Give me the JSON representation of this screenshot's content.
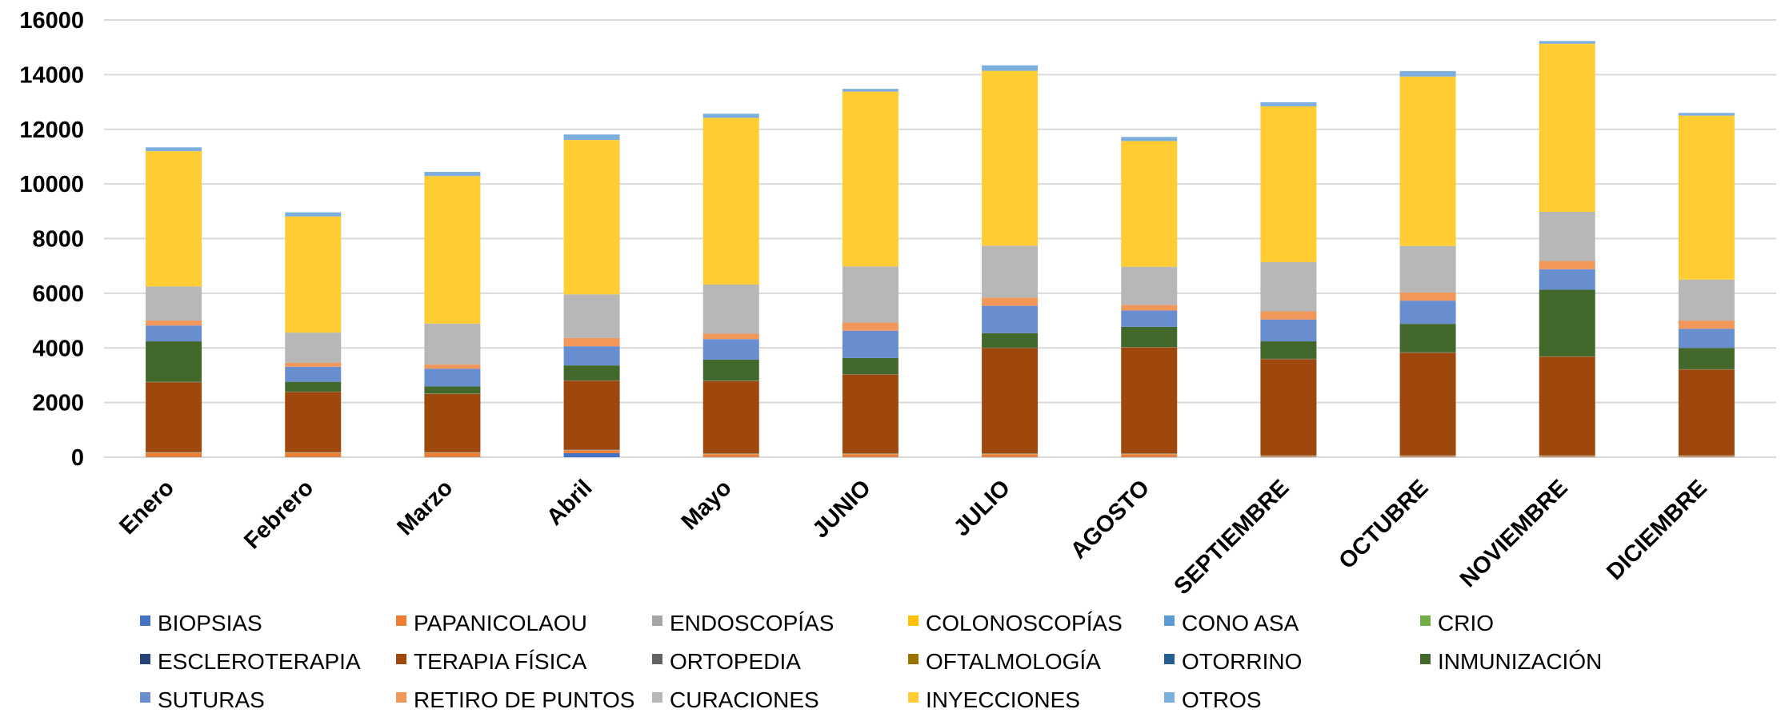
{
  "chart_data": {
    "type": "bar",
    "stacked": true,
    "title": "",
    "xlabel": "",
    "ylabel": "",
    "ylim": [
      0,
      16000
    ],
    "yticks": [
      "0",
      "2000",
      "4000",
      "6000",
      "8000",
      "10000",
      "12000",
      "14000",
      "16000"
    ],
    "grid": "horizontal",
    "legend_position": "bottom",
    "categories": [
      "Enero",
      "Febrero",
      "Marzo",
      "Abril",
      "Mayo",
      "JUNIO",
      "JULIO",
      "AGOSTO",
      "SEPTIEMBRE",
      "OCTUBRE",
      "NOVIEMBRE",
      "DICIEMBRE"
    ],
    "series": [
      {
        "name": "BIOPSIAS",
        "color": "#4472C4",
        "values": [
          10,
          10,
          10,
          150,
          10,
          10,
          10,
          10,
          10,
          10,
          10,
          10
        ]
      },
      {
        "name": "PAPANICOLAOU",
        "color": "#ED7D31",
        "values": [
          150,
          150,
          150,
          100,
          100,
          100,
          100,
          100,
          30,
          30,
          30,
          30
        ]
      },
      {
        "name": "ENDOSCOPÍAS",
        "color": "#A5A5A5",
        "values": [
          5,
          5,
          5,
          5,
          5,
          5,
          5,
          5,
          5,
          5,
          5,
          5
        ]
      },
      {
        "name": "COLONOSCOPÍAS",
        "color": "#FFC000",
        "values": [
          5,
          5,
          5,
          5,
          5,
          5,
          5,
          5,
          5,
          5,
          5,
          5
        ]
      },
      {
        "name": "CONO ASA",
        "color": "#5B9BD5",
        "values": [
          5,
          5,
          5,
          5,
          5,
          5,
          5,
          5,
          5,
          5,
          5,
          5
        ]
      },
      {
        "name": "CRIO",
        "color": "#70AD47",
        "values": [
          5,
          5,
          5,
          5,
          5,
          5,
          5,
          5,
          5,
          5,
          5,
          5
        ]
      },
      {
        "name": "ESCLEROTERAPIA",
        "color": "#264478",
        "values": [
          5,
          5,
          5,
          5,
          5,
          5,
          5,
          5,
          5,
          5,
          5,
          5
        ]
      },
      {
        "name": "TERAPIA FÍSICA",
        "color": "#9E480E",
        "values": [
          2560,
          2200,
          2130,
          2520,
          2650,
          2890,
          3860,
          3880,
          3520,
          3760,
          3610,
          3140
        ]
      },
      {
        "name": "ORTOPEDIA",
        "color": "#636363",
        "values": [
          5,
          5,
          5,
          5,
          5,
          5,
          5,
          5,
          5,
          5,
          5,
          5
        ]
      },
      {
        "name": "OFTALMOLOGÍA",
        "color": "#997300",
        "values": [
          5,
          5,
          5,
          5,
          5,
          5,
          5,
          5,
          5,
          5,
          5,
          5
        ]
      },
      {
        "name": "OTORRINO",
        "color": "#255E91",
        "values": [
          5,
          5,
          5,
          5,
          5,
          5,
          5,
          5,
          5,
          5,
          5,
          5
        ]
      },
      {
        "name": "INMUNIZACIÓN",
        "color": "#43682B",
        "values": [
          1480,
          360,
          260,
          550,
          770,
          590,
          530,
          740,
          640,
          1040,
          2440,
          780
        ]
      },
      {
        "name": "SUTURAS",
        "color": "#698ED0",
        "values": [
          580,
          550,
          650,
          700,
          750,
          1000,
          1000,
          600,
          800,
          850,
          750,
          700
        ]
      },
      {
        "name": "RETIRO DE PUNTOS",
        "color": "#F1975A",
        "values": [
          180,
          150,
          150,
          300,
          200,
          300,
          300,
          200,
          300,
          300,
          300,
          300
        ]
      },
      {
        "name": "CURACIONES",
        "color": "#B7B7B7",
        "values": [
          1250,
          1100,
          1500,
          1600,
          1800,
          2050,
          1900,
          1400,
          1800,
          1700,
          1800,
          1500
        ]
      },
      {
        "name": "INYECCIONES",
        "color": "#FFCD33",
        "values": [
          4950,
          4250,
          5400,
          5650,
          6100,
          6400,
          6400,
          4600,
          5700,
          6200,
          6150,
          6000
        ]
      },
      {
        "name": "OTROS",
        "color": "#7CAFDD",
        "values": [
          140,
          150,
          150,
          200,
          150,
          100,
          200,
          150,
          150,
          200,
          100,
          100
        ]
      }
    ]
  }
}
